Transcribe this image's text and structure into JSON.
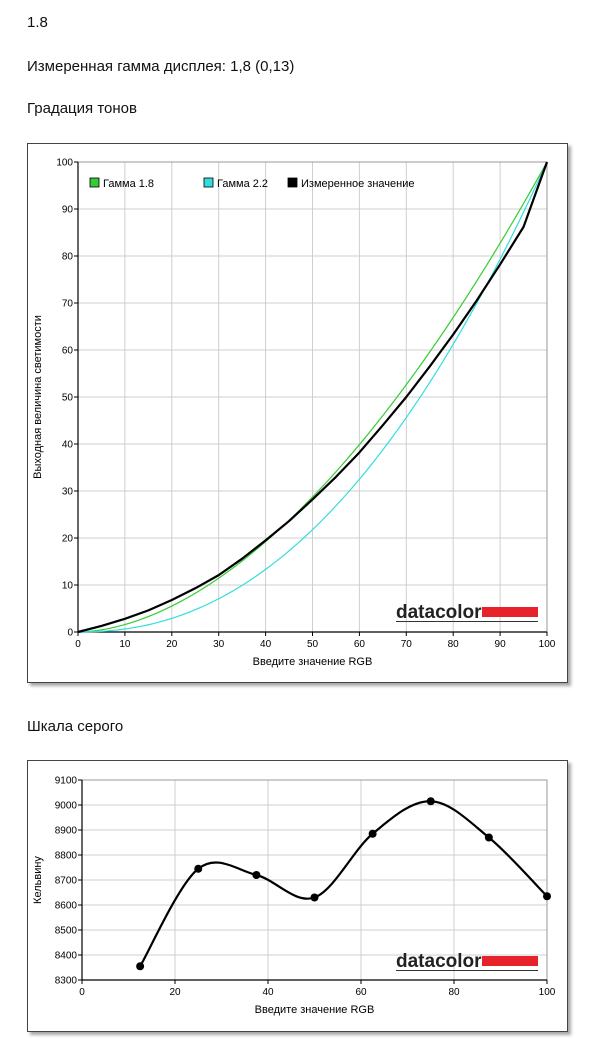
{
  "header": {
    "version": "1.8",
    "measured_gamma": "Измеренная гамма дисплея: 1,8 (0,13)",
    "section_tone": "Градация тонов",
    "section_gray": "Шкала серого"
  },
  "brand": {
    "logo_text": "datacolor",
    "accent": "#e8222b"
  },
  "chart_data": [
    {
      "type": "line",
      "title": "",
      "xlabel": "Введите значение RGB",
      "ylabel": "Выходная величина светимости",
      "xlim": [
        0,
        100
      ],
      "ylim": [
        0,
        100
      ],
      "xticks": [
        0,
        10,
        20,
        30,
        40,
        50,
        60,
        70,
        80,
        90,
        100
      ],
      "yticks": [
        0,
        10,
        20,
        30,
        40,
        50,
        60,
        70,
        80,
        90,
        100
      ],
      "grid": true,
      "legend": "top-left",
      "series": [
        {
          "name": "Гамма 1.8",
          "color": "#33cc33",
          "gamma": 1.8
        },
        {
          "name": "Гамма 2.2",
          "color": "#33dddd",
          "gamma": 2.2
        },
        {
          "name": "Измеренное значение",
          "color": "#000000",
          "x": [
            0,
            5,
            10,
            15,
            20,
            25,
            30,
            35,
            40,
            45,
            50,
            55,
            60,
            65,
            70,
            75,
            80,
            85,
            90,
            95,
            100
          ],
          "y": [
            0,
            1.3,
            2.8,
            4.6,
            6.8,
            9.3,
            12.1,
            15.6,
            19.5,
            23.6,
            28.2,
            33.0,
            38.2,
            44.0,
            50.0,
            56.5,
            63.3,
            70.5,
            78.2,
            86.2,
            100
          ]
        }
      ]
    },
    {
      "type": "line",
      "title": "",
      "xlabel": "Введите значение RGB",
      "ylabel": "Кельвину",
      "xlim": [
        0,
        100
      ],
      "ylim": [
        8300,
        9100
      ],
      "xticks": [
        0,
        20,
        40,
        60,
        80,
        100
      ],
      "yticks": [
        8300,
        8400,
        8500,
        8600,
        8700,
        8800,
        8900,
        9000,
        9100
      ],
      "grid": true,
      "series": [
        {
          "name": "",
          "color": "#000000",
          "x": [
            12.5,
            25,
            37.5,
            50,
            62.5,
            75,
            87.5,
            100
          ],
          "y": [
            8355,
            8745,
            8720,
            8630,
            8885,
            9015,
            8870,
            8635
          ]
        }
      ]
    }
  ]
}
